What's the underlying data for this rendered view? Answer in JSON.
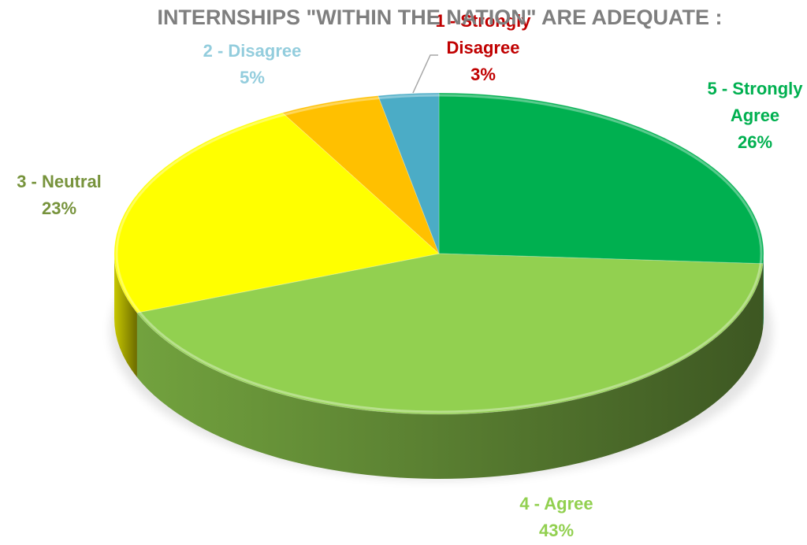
{
  "chart_data": {
    "type": "pie",
    "title": "INTERNSHIPS \"WITHIN THE NATION\" ARE ADEQUATE :",
    "slices": [
      {
        "label_lines": [
          "5 - Strongly",
          "Agree"
        ],
        "value": 26,
        "value_label": "26%",
        "color": "#00b050",
        "label_color": "#00b050"
      },
      {
        "label_lines": [
          "4 - Agree"
        ],
        "value": 43,
        "value_label": "43%",
        "color": "#92d050",
        "label_color": "#92d050"
      },
      {
        "label_lines": [
          "3 - Neutral"
        ],
        "value": 23,
        "value_label": "23%",
        "color": "#ffff00",
        "label_color": "#77933c"
      },
      {
        "label_lines": [
          "2 - Disagree"
        ],
        "value": 5,
        "value_label": "5%",
        "color": "#ffc000",
        "label_color": "#93cddd"
      },
      {
        "label_lines": [
          "1 - Strongly",
          "Disagree"
        ],
        "value": 3,
        "value_label": "3%",
        "color": "#4bacc6",
        "label_color": "#c00000"
      }
    ],
    "legend": "none",
    "style": "3d-pie"
  }
}
